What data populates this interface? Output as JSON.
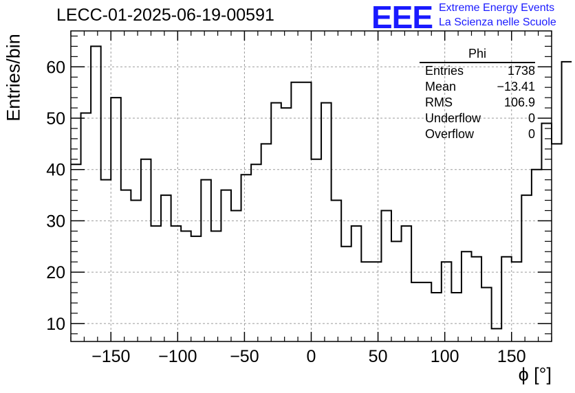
{
  "chart_data": {
    "type": "histogram",
    "title": "LECC-01-2025-06-19-00591",
    "xlabel": "ϕ [°]",
    "ylabel": "Entries/bin",
    "xlim": [
      -180,
      180
    ],
    "ylim": [
      6.5,
      67
    ],
    "grid": true,
    "bin_width": 7.5,
    "x_ticks": [
      -150,
      -100,
      -50,
      0,
      50,
      100,
      150
    ],
    "x_tick_labels": [
      "−150",
      "−100",
      "−50",
      "0",
      "50",
      "100",
      "150"
    ],
    "y_ticks": [
      10,
      20,
      30,
      40,
      50,
      60
    ],
    "y_tick_labels": [
      "10",
      "20",
      "30",
      "40",
      "50",
      "60"
    ],
    "bin_edges_start": -180,
    "values": [
      41,
      51,
      64,
      38,
      54,
      36,
      34,
      42,
      29,
      35,
      29,
      28,
      27,
      38,
      28,
      36,
      32,
      39,
      41,
      45,
      53,
      52,
      57,
      57,
      42,
      53,
      34,
      25,
      29,
      22,
      22,
      32,
      26,
      29,
      18,
      18,
      16,
      22,
      16,
      24,
      23,
      17,
      9,
      23,
      22,
      35,
      40,
      49,
      45,
      61
    ]
  },
  "stats_box": {
    "title": "Phi",
    "rows": [
      {
        "label": "Entries",
        "value": "1738"
      },
      {
        "label": "Mean",
        "value": "−13.41"
      },
      {
        "label": "RMS",
        "value": "106.9"
      },
      {
        "label": "Underflow",
        "value": "0"
      },
      {
        "label": "Overflow",
        "value": "0"
      }
    ]
  },
  "logo": {
    "mark": "EEE",
    "line1": "Extreme Energy Events",
    "line2": "La Scienza nelle Scuole"
  },
  "colors": {
    "logo": "#1a1aff",
    "line": "#000000",
    "grid": "#9a9a9a"
  }
}
